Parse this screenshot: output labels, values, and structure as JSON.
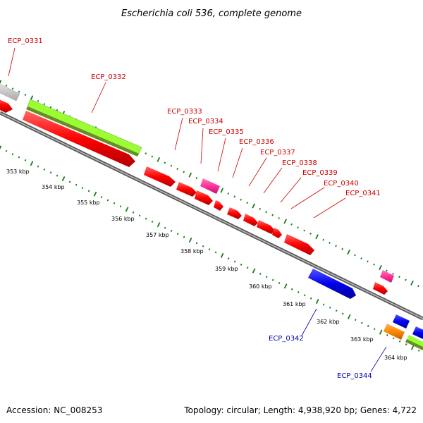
{
  "title": "Escherichia coli 536, complete genome",
  "footer": {
    "accession": "Accession: NC_008253",
    "summary": "Topology: circular; Length: 4,938,920 bp; Genes: 4,722"
  },
  "colors": {
    "background": "#ffffff",
    "backbone": "#808080",
    "tick": "#1a7a1a",
    "forward_gene_label": "#cc0000",
    "reverse_gene_label": "#0000aa",
    "cds": "#ff0000",
    "pink_feature": "#ff3399",
    "reverse_cds": "#0000ee",
    "orange_feature": "#ff8800",
    "lime_feature": "#99ff33",
    "grey_feature": "#cccccc"
  },
  "kbp_ticks": [
    "353 kbp",
    "354 kbp",
    "355 kbp",
    "356 kbp",
    "357 kbp",
    "358 kbp",
    "359 kbp",
    "360 kbp",
    "361 kbp",
    "362 kbp",
    "363 kbp",
    "364 kbp"
  ],
  "gene_labels": [
    {
      "text": "ECP_0331",
      "strand": "forward"
    },
    {
      "text": "ECP_0332",
      "strand": "forward"
    },
    {
      "text": "ECP_0333",
      "strand": "forward"
    },
    {
      "text": "ECP_0334",
      "strand": "forward"
    },
    {
      "text": "ECP_0335",
      "strand": "forward"
    },
    {
      "text": "ECP_0336",
      "strand": "forward"
    },
    {
      "text": "ECP_0337",
      "strand": "forward"
    },
    {
      "text": "ECP_0338",
      "strand": "forward"
    },
    {
      "text": "ECP_0339",
      "strand": "forward"
    },
    {
      "text": "ECP_0340",
      "strand": "forward"
    },
    {
      "text": "ECP_0341",
      "strand": "forward"
    },
    {
      "text": "ECP_0342",
      "strand": "reverse"
    },
    {
      "text": "ECP_0344",
      "strand": "reverse"
    }
  ]
}
